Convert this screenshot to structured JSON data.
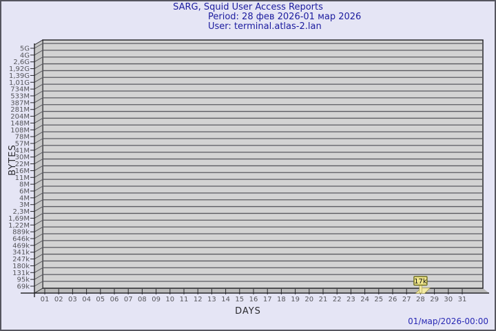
{
  "title": {
    "line1": "SARG, Squid User Access Reports",
    "line2": "Period: 28 фев 2026-01 мар 2026",
    "line3": "User: terminal.atlas-2.lan"
  },
  "footer": {
    "datetime": "01/мар/2026-00:00"
  },
  "chart_data": {
    "type": "bar",
    "title": "SARG, Squid User Access Reports",
    "subtitle_period": "Period: 28 фев 2026-01 мар 2026",
    "subtitle_user": "User: terminal.atlas-2.lan",
    "xlabel": "DAYS",
    "ylabel": "BYTES",
    "yscale": "log",
    "grid": true,
    "legend": "none",
    "categories": [
      "01",
      "02",
      "03",
      "04",
      "05",
      "06",
      "07",
      "08",
      "09",
      "10",
      "11",
      "12",
      "13",
      "14",
      "15",
      "16",
      "17",
      "18",
      "19",
      "20",
      "21",
      "22",
      "23",
      "24",
      "25",
      "26",
      "27",
      "28",
      "29",
      "30",
      "31"
    ],
    "values": [
      0,
      0,
      0,
      0,
      0,
      0,
      0,
      0,
      0,
      0,
      0,
      0,
      0,
      0,
      0,
      0,
      0,
      0,
      0,
      0,
      0,
      0,
      0,
      0,
      0,
      0,
      0,
      17000,
      0,
      0,
      0
    ],
    "y_ticks": [
      "5G",
      "4G",
      "2,6G",
      "1,92G",
      "1,39G",
      "1,01G",
      "734M",
      "533M",
      "387M",
      "281M",
      "204M",
      "148M",
      "108M",
      "78M",
      "57M",
      "41M",
      "30M",
      "22M",
      "16M",
      "11M",
      "8M",
      "6M",
      "4M",
      "3M",
      "2,3M",
      "1,69M",
      "1,22M",
      "889k",
      "646k",
      "469k",
      "341k",
      "247k",
      "180k",
      "131k",
      "95k",
      "69k"
    ],
    "ylim": [
      "69k",
      "5G"
    ],
    "annotations": [
      {
        "day": "28",
        "value_label": "17k",
        "value_bytes": 17000
      }
    ]
  },
  "colors": {
    "page_bg": "#e5e5f5",
    "page_border": "#55555f",
    "title_text": "#1b1b9e",
    "footer_text": "#2828b4",
    "plot_bg": "#d3d3d3",
    "wall_bg": "#c7c7c7",
    "floor_bg": "#b9b9b9",
    "grid_line": "#5a5a60",
    "axis_line": "#26262a",
    "tick_text": "#55555a",
    "flag_bg": "#f0e68c",
    "flag_border": "#6f6f1e",
    "flag_text": "#141414",
    "bar_fill": "#f2e9a3",
    "bar_edge": "#9a8f3a"
  }
}
